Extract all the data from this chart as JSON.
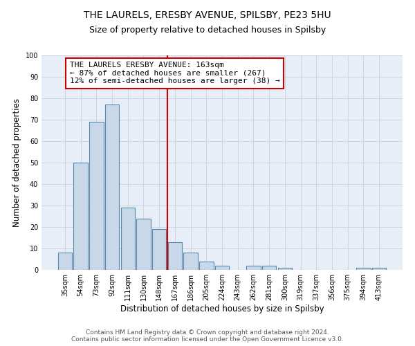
{
  "title": "THE LAURELS, ERESBY AVENUE, SPILSBY, PE23 5HU",
  "subtitle": "Size of property relative to detached houses in Spilsby",
  "xlabel": "Distribution of detached houses by size in Spilsby",
  "ylabel": "Number of detached properties",
  "categories": [
    "35sqm",
    "54sqm",
    "73sqm",
    "92sqm",
    "111sqm",
    "130sqm",
    "148sqm",
    "167sqm",
    "186sqm",
    "205sqm",
    "224sqm",
    "243sqm",
    "262sqm",
    "281sqm",
    "300sqm",
    "319sqm",
    "337sqm",
    "356sqm",
    "375sqm",
    "394sqm",
    "413sqm"
  ],
  "values": [
    8,
    50,
    69,
    77,
    29,
    24,
    19,
    13,
    8,
    4,
    2,
    0,
    2,
    2,
    1,
    0,
    0,
    0,
    0,
    1,
    1
  ],
  "bar_color": "#c8d8e8",
  "bar_edge_color": "#5588aa",
  "vline_color": "#cc0000",
  "annotation_text": "THE LAURELS ERESBY AVENUE: 163sqm\n← 87% of detached houses are smaller (267)\n12% of semi-detached houses are larger (38) →",
  "annotation_box_color": "#ffffff",
  "annotation_box_edge_color": "#cc0000",
  "ylim": [
    0,
    100
  ],
  "yticks": [
    0,
    10,
    20,
    30,
    40,
    50,
    60,
    70,
    80,
    90,
    100
  ],
  "grid_color": "#cdd5e0",
  "background_color": "#e8eef8",
  "footer_text": "Contains HM Land Registry data © Crown copyright and database right 2024.\nContains public sector information licensed under the Open Government Licence v3.0.",
  "title_fontsize": 10,
  "subtitle_fontsize": 9,
  "xlabel_fontsize": 8.5,
  "ylabel_fontsize": 8.5,
  "tick_fontsize": 7,
  "annotation_fontsize": 8,
  "footer_fontsize": 6.5
}
